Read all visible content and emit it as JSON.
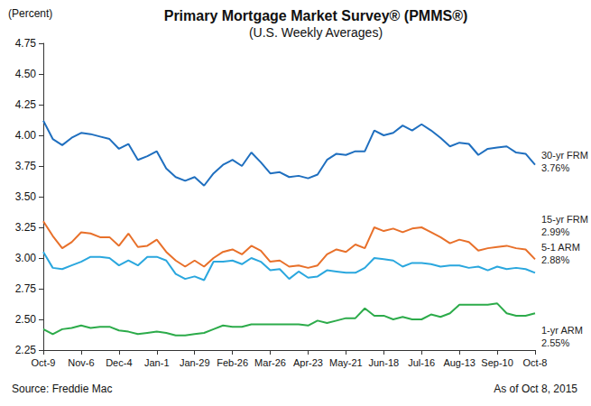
{
  "chart_data": {
    "type": "line",
    "title": "Primary Mortgage Market Survey® (PMMS®)",
    "subtitle": "(U.S. Weekly Averages)",
    "y_label": "(Percent)",
    "source": "Source: Freddie Mac",
    "note": "As of Oct 8, 2015",
    "categories": [
      "Oct-9",
      null,
      null,
      null,
      "Nov-6",
      null,
      null,
      null,
      "Dec-4",
      null,
      null,
      null,
      "Jan-1",
      null,
      null,
      null,
      "Jan-29",
      null,
      null,
      null,
      "Feb-26",
      null,
      null,
      null,
      "Mar-26",
      null,
      null,
      null,
      "Apr-23",
      null,
      null,
      null,
      "May-21",
      null,
      null,
      null,
      "Jun-18",
      null,
      null,
      null,
      "Jul-16",
      null,
      null,
      null,
      "Aug-13",
      null,
      null,
      null,
      "Sep-10",
      null,
      null,
      null,
      "Oct-8"
    ],
    "series": [
      {
        "name": "30-yr FRM",
        "color": "#1f6fbf",
        "values": [
          4.12,
          3.97,
          3.92,
          3.98,
          4.02,
          4.01,
          3.99,
          3.97,
          3.89,
          3.93,
          3.8,
          3.83,
          3.87,
          3.73,
          3.66,
          3.63,
          3.66,
          3.59,
          3.69,
          3.76,
          3.8,
          3.75,
          3.86,
          3.78,
          3.69,
          3.7,
          3.66,
          3.67,
          3.65,
          3.68,
          3.8,
          3.85,
          3.84,
          3.87,
          3.87,
          4.04,
          4.0,
          4.02,
          4.08,
          4.04,
          4.09,
          4.04,
          3.98,
          3.91,
          3.94,
          3.93,
          3.84,
          3.89,
          3.9,
          3.91,
          3.86,
          3.85,
          3.76
        ],
        "value_labels": [
          null,
          null,
          null,
          null,
          null,
          null,
          null,
          null,
          null,
          null,
          null,
          null,
          null,
          null,
          null,
          null,
          null,
          null,
          null,
          null,
          null,
          null,
          null,
          null,
          null,
          null,
          null,
          null,
          null,
          null,
          null,
          null,
          null,
          null,
          null,
          null,
          null,
          null,
          null,
          null,
          null,
          null,
          null,
          null,
          null,
          null,
          null,
          null,
          null,
          null,
          null,
          null,
          "3.76%"
        ]
      },
      {
        "name": "15-yr FRM",
        "color": "#e8702a",
        "values": [
          3.3,
          3.18,
          3.08,
          3.13,
          3.21,
          3.2,
          3.17,
          3.17,
          3.1,
          3.2,
          3.09,
          3.1,
          3.15,
          3.05,
          2.98,
          2.93,
          2.98,
          2.93,
          3.0,
          3.05,
          3.07,
          3.03,
          3.1,
          3.06,
          2.97,
          2.98,
          2.93,
          2.94,
          2.92,
          2.94,
          3.03,
          3.07,
          3.05,
          3.11,
          3.08,
          3.25,
          3.22,
          3.24,
          3.21,
          3.24,
          3.25,
          3.21,
          3.17,
          3.12,
          3.15,
          3.13,
          3.06,
          3.08,
          3.09,
          3.1,
          3.08,
          3.07,
          2.99
        ],
        "value_labels": [
          null,
          null,
          null,
          null,
          null,
          null,
          null,
          null,
          null,
          null,
          null,
          null,
          null,
          null,
          null,
          null,
          null,
          null,
          null,
          null,
          null,
          null,
          null,
          null,
          null,
          null,
          null,
          null,
          null,
          null,
          null,
          null,
          null,
          null,
          null,
          null,
          null,
          null,
          null,
          null,
          null,
          null,
          null,
          null,
          null,
          null,
          null,
          null,
          null,
          null,
          null,
          null,
          "2.99%"
        ]
      },
      {
        "name": "5-1 ARM",
        "color": "#2aa7de",
        "values": [
          3.05,
          2.92,
          2.91,
          2.94,
          2.97,
          3.01,
          3.01,
          3.0,
          2.94,
          2.98,
          2.94,
          3.01,
          3.01,
          2.98,
          2.87,
          2.83,
          2.85,
          2.82,
          2.97,
          2.97,
          2.98,
          2.95,
          3.0,
          2.97,
          2.9,
          2.91,
          2.83,
          2.89,
          2.84,
          2.85,
          2.9,
          2.89,
          2.88,
          2.88,
          2.92,
          3.0,
          2.99,
          2.98,
          2.93,
          2.96,
          2.96,
          2.95,
          2.93,
          2.94,
          2.94,
          2.92,
          2.93,
          2.9,
          2.93,
          2.91,
          2.92,
          2.91,
          2.88
        ],
        "value_labels": [
          null,
          null,
          null,
          null,
          null,
          null,
          null,
          null,
          null,
          null,
          null,
          null,
          null,
          null,
          null,
          null,
          null,
          null,
          null,
          null,
          null,
          null,
          null,
          null,
          null,
          null,
          null,
          null,
          null,
          null,
          null,
          null,
          null,
          null,
          null,
          null,
          null,
          null,
          null,
          null,
          null,
          null,
          null,
          null,
          null,
          null,
          null,
          null,
          null,
          null,
          null,
          null,
          "2.88%"
        ]
      },
      {
        "name": "1-yr ARM",
        "color": "#2cab4a",
        "values": [
          2.42,
          2.38,
          2.42,
          2.43,
          2.45,
          2.43,
          2.44,
          2.44,
          2.41,
          2.4,
          2.38,
          2.39,
          2.4,
          2.39,
          2.37,
          2.37,
          2.38,
          2.39,
          2.42,
          2.45,
          2.44,
          2.44,
          2.46,
          2.46,
          2.46,
          2.46,
          2.46,
          2.46,
          2.45,
          2.49,
          2.47,
          2.49,
          2.51,
          2.51,
          2.59,
          2.53,
          2.53,
          2.5,
          2.52,
          2.5,
          2.5,
          2.54,
          2.52,
          2.55,
          2.62,
          2.62,
          2.62,
          2.62,
          2.63,
          2.55,
          2.53,
          2.53,
          2.55
        ],
        "value_labels": [
          null,
          null,
          null,
          null,
          null,
          null,
          null,
          null,
          null,
          null,
          null,
          null,
          null,
          null,
          null,
          null,
          null,
          null,
          null,
          null,
          null,
          null,
          null,
          null,
          null,
          null,
          null,
          null,
          null,
          null,
          null,
          null,
          null,
          null,
          null,
          null,
          null,
          null,
          null,
          null,
          null,
          null,
          null,
          null,
          null,
          null,
          null,
          null,
          null,
          null,
          null,
          null,
          "2.55%"
        ]
      }
    ],
    "ylim": [
      2.25,
      4.75
    ],
    "yticks": [
      2.25,
      {
        "value": 2.5,
        "label": "2.50"
      },
      2.75,
      {
        "value": 3,
        "label": "3.00"
      },
      3.25,
      {
        "value": 3.5,
        "label": "3.50"
      },
      3.75,
      {
        "value": 4,
        "label": "4.00"
      },
      4.25,
      {
        "value": 4.5,
        "label": "4.50"
      },
      4.75
    ],
    "grid": false
  }
}
